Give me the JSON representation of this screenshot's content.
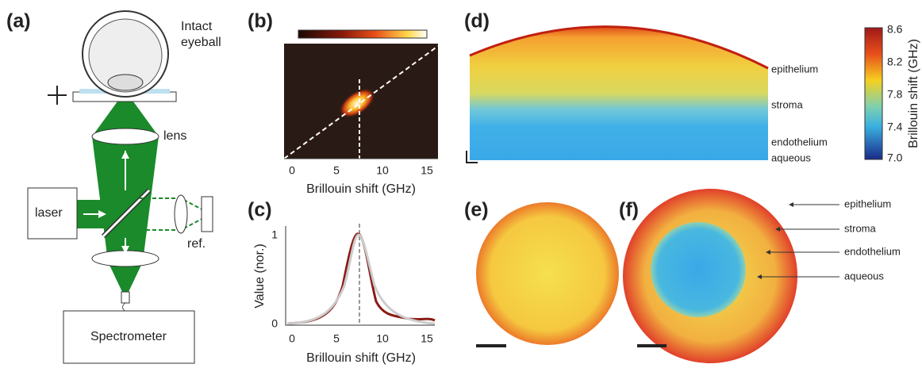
{
  "panels": {
    "a": {
      "label": "(a)",
      "eyeball": [
        "Intact",
        "eyeball"
      ],
      "lens": "lens",
      "laser": "laser",
      "ref": "ref.",
      "spectrometer": "Spectrometer"
    },
    "b": {
      "label": "(b)",
      "xlabel": "Brillouin shift (GHz)",
      "xticks": [
        "0",
        "5",
        "10",
        "15"
      ]
    },
    "c": {
      "label": "(c)",
      "xlabel": "Brillouin shift (GHz)",
      "ylabel": "Value (nor.)",
      "xticks": [
        "0",
        "5",
        "10",
        "15"
      ],
      "yticks": [
        "1",
        "0"
      ]
    },
    "d": {
      "label": "(d)",
      "layers": [
        "epithelium",
        "stroma",
        "endothelium",
        "aqueous"
      ],
      "colorbar_label": "Brillouin shift (GHz)",
      "colorbar_ticks": [
        "8.6",
        "8.2",
        "7.8",
        "7.4",
        "7.0"
      ]
    },
    "e": {
      "label": "(e)"
    },
    "f": {
      "label": "(f)",
      "layers": [
        "epithelium",
        "stroma",
        "endothelium",
        "aqueous"
      ]
    }
  }
}
